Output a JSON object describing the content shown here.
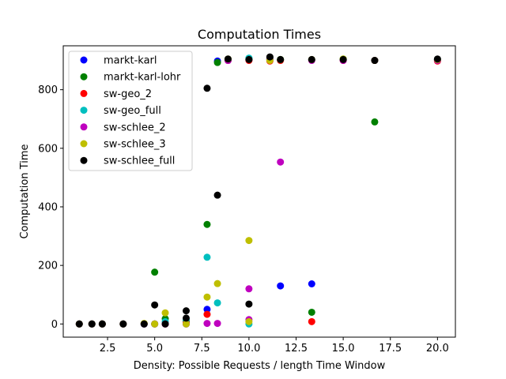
{
  "chart_data": {
    "type": "scatter",
    "title": "Computation Times",
    "xlabel": "Density: Possible Requests / length Time Window",
    "ylabel": "Computation Time",
    "xlim": [
      0.15,
      20.95
    ],
    "ylim": [
      -45,
      950
    ],
    "xticks": [
      2.5,
      5.0,
      7.5,
      10.0,
      12.5,
      15.0,
      17.5,
      20.0
    ],
    "xtick_labels": [
      "2.5",
      "5.0",
      "7.5",
      "10.0",
      "12.5",
      "15.0",
      "17.5",
      "20.0"
    ],
    "yticks": [
      0,
      200,
      400,
      600,
      800
    ],
    "ytick_labels": [
      "0",
      "200",
      "400",
      "600",
      "800"
    ],
    "grid": false,
    "legend_position": "top-left",
    "series": [
      {
        "name": "markt-karl",
        "color": "#0000ff",
        "points": [
          {
            "x": 1.0,
            "y": 0
          },
          {
            "x": 1.67,
            "y": 0
          },
          {
            "x": 2.22,
            "y": 0
          },
          {
            "x": 3.33,
            "y": 0
          },
          {
            "x": 4.44,
            "y": 0
          },
          {
            "x": 5.0,
            "y": 0
          },
          {
            "x": 5.56,
            "y": 0
          },
          {
            "x": 6.67,
            "y": 0
          },
          {
            "x": 7.78,
            "y": 50
          },
          {
            "x": 8.33,
            "y": 898
          },
          {
            "x": 8.89,
            "y": 900
          },
          {
            "x": 10.0,
            "y": 902
          },
          {
            "x": 11.11,
            "y": 903
          },
          {
            "x": 11.67,
            "y": 130
          },
          {
            "x": 13.33,
            "y": 137
          },
          {
            "x": 15.0,
            "y": 903
          },
          {
            "x": 16.67,
            "y": 900
          },
          {
            "x": 20.0,
            "y": 902
          }
        ]
      },
      {
        "name": "markt-karl-lohr",
        "color": "#008000",
        "points": [
          {
            "x": 1.0,
            "y": 0
          },
          {
            "x": 1.67,
            "y": 0
          },
          {
            "x": 2.22,
            "y": 0
          },
          {
            "x": 3.33,
            "y": 0
          },
          {
            "x": 4.44,
            "y": 0
          },
          {
            "x": 5.0,
            "y": 177
          },
          {
            "x": 5.56,
            "y": 18
          },
          {
            "x": 6.67,
            "y": 10
          },
          {
            "x": 7.78,
            "y": 340
          },
          {
            "x": 8.33,
            "y": 893
          },
          {
            "x": 8.89,
            "y": 903
          },
          {
            "x": 10.0,
            "y": 905
          },
          {
            "x": 11.11,
            "y": 910
          },
          {
            "x": 11.67,
            "y": 903
          },
          {
            "x": 13.33,
            "y": 40
          },
          {
            "x": 15.0,
            "y": 905
          },
          {
            "x": 16.67,
            "y": 690
          },
          {
            "x": 20.0,
            "y": 903
          }
        ]
      },
      {
        "name": "sw-geo_2",
        "color": "#ff0000",
        "points": [
          {
            "x": 1.0,
            "y": 0
          },
          {
            "x": 1.67,
            "y": 0
          },
          {
            "x": 2.22,
            "y": 0
          },
          {
            "x": 3.33,
            "y": 0
          },
          {
            "x": 4.44,
            "y": 0
          },
          {
            "x": 5.0,
            "y": 0
          },
          {
            "x": 5.56,
            "y": 0
          },
          {
            "x": 6.67,
            "y": 5
          },
          {
            "x": 7.78,
            "y": 33
          },
          {
            "x": 8.89,
            "y": 900
          },
          {
            "x": 10.0,
            "y": 900
          },
          {
            "x": 11.11,
            "y": 898
          },
          {
            "x": 11.67,
            "y": 900
          },
          {
            "x": 13.33,
            "y": 8
          },
          {
            "x": 15.0,
            "y": 900
          },
          {
            "x": 16.67,
            "y": 900
          },
          {
            "x": 20.0,
            "y": 898
          }
        ]
      },
      {
        "name": "sw-geo_full",
        "color": "#00bfbf",
        "points": [
          {
            "x": 1.0,
            "y": 0
          },
          {
            "x": 1.67,
            "y": 0
          },
          {
            "x": 2.22,
            "y": 0
          },
          {
            "x": 3.33,
            "y": 0
          },
          {
            "x": 4.44,
            "y": 0
          },
          {
            "x": 5.0,
            "y": 0
          },
          {
            "x": 5.56,
            "y": 8
          },
          {
            "x": 6.67,
            "y": 15
          },
          {
            "x": 7.78,
            "y": 228
          },
          {
            "x": 8.33,
            "y": 72
          },
          {
            "x": 8.89,
            "y": 903
          },
          {
            "x": 10.0,
            "y": 0
          },
          {
            "x": 10.0,
            "y": 908
          },
          {
            "x": 11.11,
            "y": 905
          },
          {
            "x": 11.67,
            "y": 903
          },
          {
            "x": 13.33,
            "y": 902
          },
          {
            "x": 15.0,
            "y": 903
          },
          {
            "x": 16.67,
            "y": 900
          },
          {
            "x": 20.0,
            "y": 903
          }
        ]
      },
      {
        "name": "sw-schlee_2",
        "color": "#bf00bf",
        "points": [
          {
            "x": 1.0,
            "y": 0
          },
          {
            "x": 1.67,
            "y": 0
          },
          {
            "x": 2.22,
            "y": 0
          },
          {
            "x": 3.33,
            "y": 0
          },
          {
            "x": 4.44,
            "y": 0
          },
          {
            "x": 5.0,
            "y": 0
          },
          {
            "x": 5.56,
            "y": 0
          },
          {
            "x": 6.67,
            "y": 0
          },
          {
            "x": 7.78,
            "y": 2
          },
          {
            "x": 8.33,
            "y": 2
          },
          {
            "x": 8.89,
            "y": 900
          },
          {
            "x": 10.0,
            "y": 120
          },
          {
            "x": 10.0,
            "y": 15
          },
          {
            "x": 11.11,
            "y": 905
          },
          {
            "x": 11.67,
            "y": 553
          },
          {
            "x": 13.33,
            "y": 900
          },
          {
            "x": 15.0,
            "y": 900
          },
          {
            "x": 16.67,
            "y": 900
          },
          {
            "x": 20.0,
            "y": 900
          }
        ]
      },
      {
        "name": "sw-schlee_3",
        "color": "#bfbf00",
        "points": [
          {
            "x": 1.0,
            "y": 0
          },
          {
            "x": 1.67,
            "y": 0
          },
          {
            "x": 2.22,
            "y": 0
          },
          {
            "x": 3.33,
            "y": 0
          },
          {
            "x": 4.44,
            "y": 2
          },
          {
            "x": 5.0,
            "y": 0
          },
          {
            "x": 5.56,
            "y": 38
          },
          {
            "x": 6.67,
            "y": 0
          },
          {
            "x": 7.78,
            "y": 92
          },
          {
            "x": 8.33,
            "y": 138
          },
          {
            "x": 8.89,
            "y": 905
          },
          {
            "x": 10.0,
            "y": 285
          },
          {
            "x": 10.0,
            "y": 8
          },
          {
            "x": 11.11,
            "y": 900
          },
          {
            "x": 11.67,
            "y": 903
          },
          {
            "x": 13.33,
            "y": 903
          },
          {
            "x": 15.0,
            "y": 905
          },
          {
            "x": 16.67,
            "y": 900
          },
          {
            "x": 20.0,
            "y": 903
          }
        ]
      },
      {
        "name": "sw-schlee_full",
        "color": "#000000",
        "points": [
          {
            "x": 1.0,
            "y": 0
          },
          {
            "x": 1.67,
            "y": 0
          },
          {
            "x": 2.22,
            "y": 0
          },
          {
            "x": 3.33,
            "y": 0
          },
          {
            "x": 4.44,
            "y": 0
          },
          {
            "x": 5.0,
            "y": 65
          },
          {
            "x": 5.56,
            "y": 0
          },
          {
            "x": 6.67,
            "y": 45
          },
          {
            "x": 6.67,
            "y": 20
          },
          {
            "x": 7.78,
            "y": 805
          },
          {
            "x": 8.33,
            "y": 440
          },
          {
            "x": 8.89,
            "y": 905
          },
          {
            "x": 10.0,
            "y": 68
          },
          {
            "x": 10.0,
            "y": 903
          },
          {
            "x": 11.11,
            "y": 912
          },
          {
            "x": 11.67,
            "y": 903
          },
          {
            "x": 13.33,
            "y": 903
          },
          {
            "x": 15.0,
            "y": 903
          },
          {
            "x": 16.67,
            "y": 900
          },
          {
            "x": 20.0,
            "y": 905
          }
        ]
      }
    ]
  }
}
